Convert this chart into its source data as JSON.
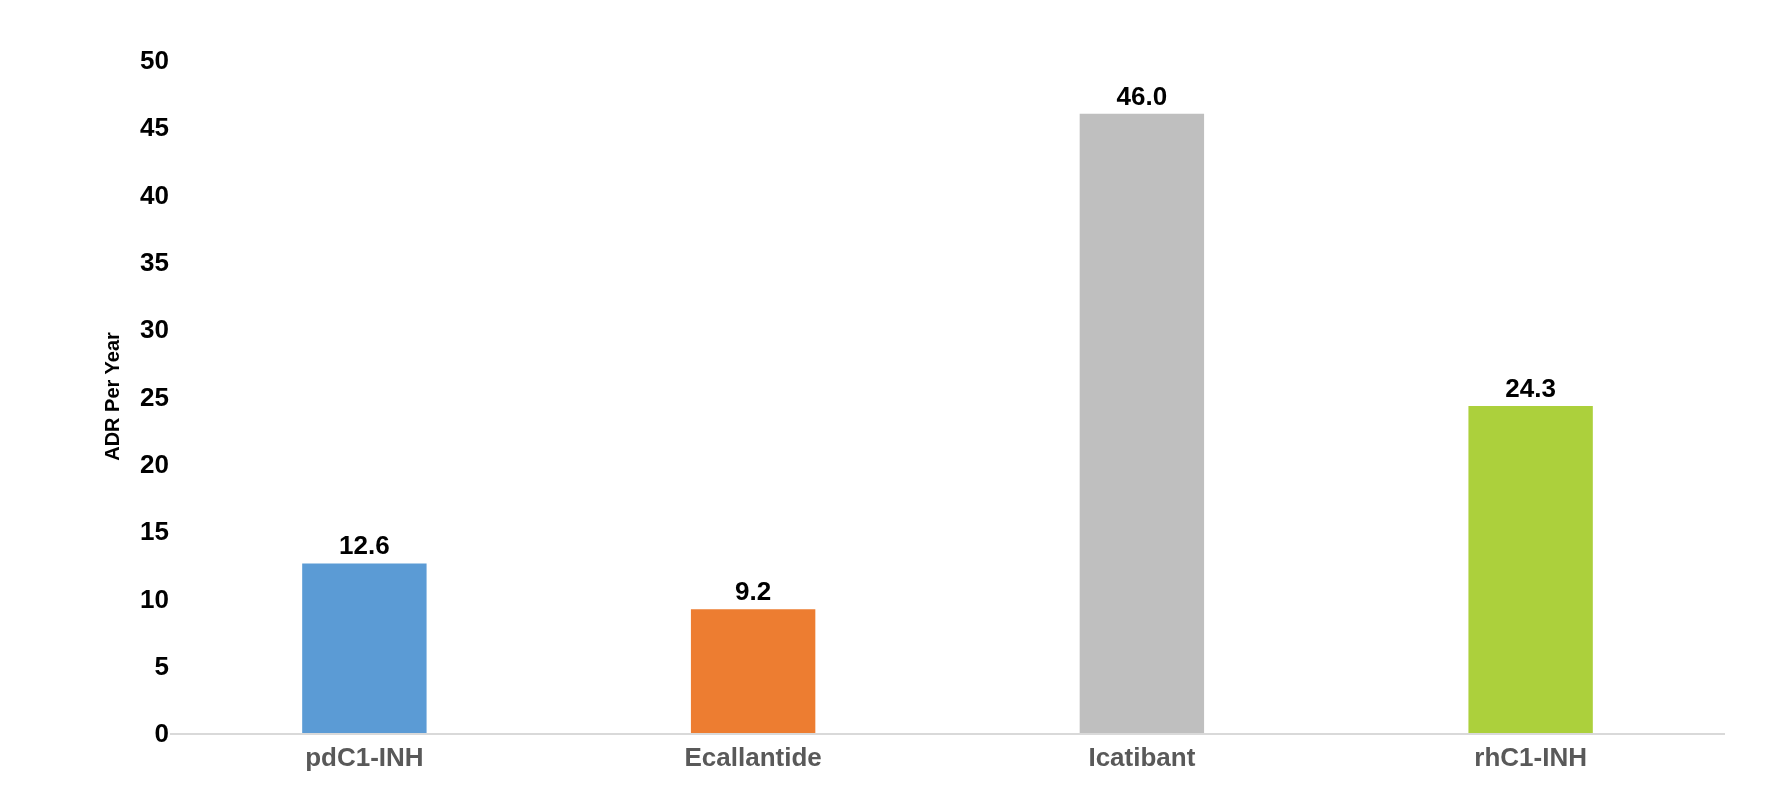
{
  "chart_data": {
    "type": "bar",
    "ylabel": "ADR Per Year",
    "categories": [
      "pdC1-INH",
      "Ecallantide",
      "Icatibant",
      "rhC1-INH"
    ],
    "values": [
      12.6,
      9.2,
      46.0,
      24.3
    ],
    "colors": [
      "#5b9bd5",
      "#ed7d31",
      "#bfbfbf",
      "#acd03c"
    ],
    "value_labels": [
      "12.6",
      "9.2",
      "46.0",
      "24.3"
    ],
    "ylim": [
      0,
      50
    ],
    "yticks": [
      0,
      5,
      10,
      15,
      20,
      25,
      30,
      35,
      40,
      45,
      50
    ]
  }
}
